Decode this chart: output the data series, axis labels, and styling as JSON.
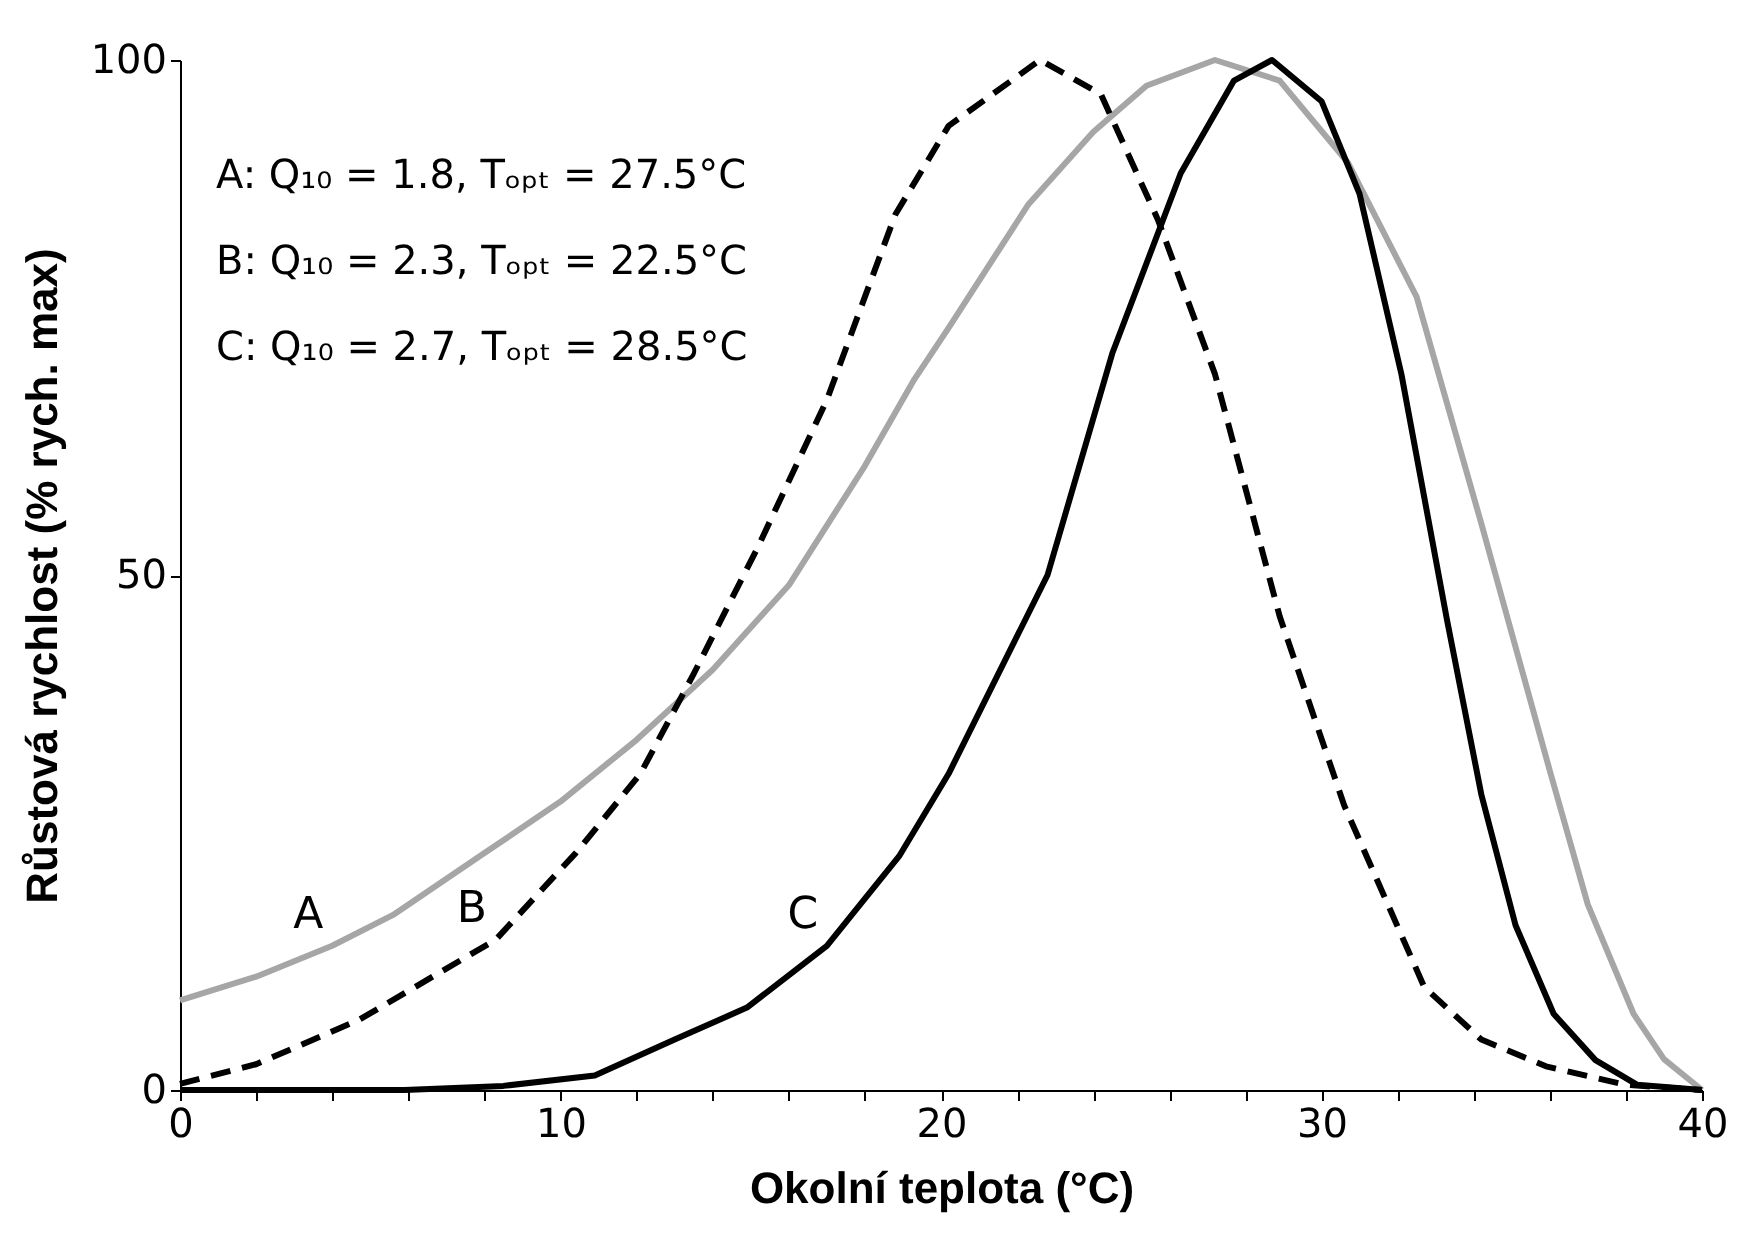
{
  "chart_data": {
    "type": "line",
    "xlabel": "Okolní teplota (°C)",
    "ylabel": "Růstová rychlost (% rych. max)",
    "xlim": [
      0,
      40
    ],
    "ylim": [
      0,
      100
    ],
    "xticks": [
      0,
      {
        "value": 2,
        "label": null
      },
      {
        "value": 4,
        "label": null
      },
      {
        "value": 6,
        "label": null
      },
      {
        "value": 8,
        "label": null
      },
      10,
      {
        "value": 12,
        "label": null
      },
      {
        "value": 14,
        "label": null
      },
      {
        "value": 16,
        "label": null
      },
      {
        "value": 18,
        "label": null
      },
      20,
      {
        "value": 22,
        "label": null
      },
      {
        "value": 24,
        "label": null
      },
      {
        "value": 26,
        "label": null
      },
      {
        "value": 28,
        "label": null
      },
      30,
      {
        "value": 32,
        "label": null
      },
      {
        "value": 34,
        "label": null
      },
      {
        "value": 36,
        "label": null
      },
      {
        "value": 38,
        "label": null
      },
      40
    ],
    "yticks": [
      0,
      50,
      100
    ],
    "grid": false,
    "marker": "none",
    "series": [
      {
        "name": "A",
        "color": "#a6a6a6",
        "line_style": "solid",
        "x": [
          0,
          2,
          4,
          5.6,
          8,
          10,
          12,
          14,
          16,
          18,
          19.3,
          20.2,
          22.3,
          24,
          25.4,
          27.2,
          28.9,
          30.7,
          32.5,
          34.2,
          36,
          37,
          38.2,
          39,
          40
        ],
        "values": [
          8.7,
          11,
          14,
          17,
          23,
          28,
          34,
          40.8,
          49,
          60.6,
          69,
          74,
          86,
          93,
          97.5,
          100,
          98,
          90,
          77,
          55,
          31,
          18,
          7.4,
          3,
          0
        ]
      },
      {
        "name": "B",
        "color": "#000000",
        "line_style": "dashed",
        "x": [
          0,
          2,
          4.7,
          8.3,
          10.4,
          12.1,
          13.5,
          15.2,
          17,
          18.8,
          20.2,
          22.6,
          24.2,
          25.7,
          27.2,
          28.9,
          30.6,
          32.7,
          34.2,
          35.9,
          38,
          40
        ],
        "values": [
          0.6,
          2.5,
          6.8,
          14.6,
          23,
          30.7,
          40.4,
          52.8,
          67,
          85,
          93.6,
          100,
          96.7,
          84.5,
          69.5,
          46,
          27.6,
          10,
          4.9,
          2.3,
          0.5,
          0
        ]
      },
      {
        "name": "C",
        "color": "#000000",
        "line_style": "solid",
        "x": [
          0,
          5.9,
          8.5,
          10.9,
          13,
          14.9,
          17,
          18.9,
          20.2,
          22.8,
          24.5,
          26.3,
          27.7,
          28.7,
          30,
          31,
          32.1,
          33.3,
          34.2,
          35.1,
          36.1,
          37.2,
          38.3,
          40
        ],
        "values": [
          0,
          0,
          0.4,
          1.4,
          4.9,
          8,
          14,
          22.7,
          30.7,
          50,
          71.5,
          89,
          98,
          100,
          96,
          87,
          69.5,
          45.6,
          28.7,
          16,
          7.4,
          2.9,
          0.5,
          0
        ]
      }
    ],
    "annotations": [
      "A: Q₁₀ = 1.8, Tₒₚₜ = 27.5°C",
      "B: Q₁₀ = 2.3, Tₒₚₜ = 22.5°C",
      "C: Q₁₀ = 2.7, Tₒₚₜ = 28.5°C"
    ]
  }
}
